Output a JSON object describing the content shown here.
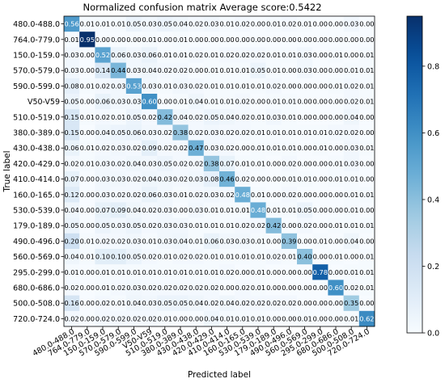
{
  "chart_data": {
    "type": "heatmap",
    "title": "Normalized confusion matrix    Average score:0.5422",
    "xlabel": "Predicted label",
    "ylabel": "True label",
    "labels": [
      "480.0-488.0",
      "764.0-779.0",
      "150.0-159.0",
      "570.0-579.0",
      "590.0-599.0",
      "V50-V59",
      "510.0-519.0",
      "380.0-389.0",
      "430.0-438.0",
      "420.0-429.0",
      "410.0-414.0",
      "160.0-165.0",
      "530.0-539.0",
      "179.0-189.0",
      "490.0-496.0",
      "560.0-569.0",
      "295.0-299.0",
      "680.0-686.0",
      "500.0-508.0",
      "720.0-724.0"
    ],
    "matrix": [
      [
        0.56,
        0.01,
        0.01,
        0.01,
        0.05,
        0.03,
        0.05,
        0.04,
        0.02,
        0.03,
        0.01,
        0.02,
        0.0,
        0.01,
        0.02,
        0.01,
        0.0,
        0.0,
        0.03,
        0.0
      ],
      [
        0.01,
        0.95,
        0.0,
        0.0,
        0.0,
        0.01,
        0.0,
        0.01,
        0.0,
        0.0,
        0.0,
        0.0,
        0.0,
        0.0,
        0.0,
        0.0,
        0.0,
        0.0,
        0.0,
        0.0
      ],
      [
        0.03,
        0.0,
        0.52,
        0.06,
        0.03,
        0.06,
        0.01,
        0.01,
        0.02,
        0.01,
        0.02,
        0.02,
        0.02,
        0.01,
        0.01,
        0.03,
        0.0,
        0.01,
        0.0,
        0.01
      ],
      [
        0.03,
        0.0,
        0.14,
        0.44,
        0.03,
        0.04,
        0.02,
        0.02,
        0.0,
        0.01,
        0.01,
        0.01,
        0.05,
        0.01,
        0.0,
        0.03,
        0.0,
        0.0,
        0.01,
        0.01
      ],
      [
        0.08,
        0.01,
        0.02,
        0.03,
        0.53,
        0.03,
        0.01,
        0.03,
        0.02,
        0.01,
        0.01,
        0.01,
        0.01,
        0.02,
        0.0,
        0.0,
        0.0,
        0.01,
        0.02,
        0.01
      ],
      [
        0.05,
        0.0,
        0.06,
        0.03,
        0.03,
        0.6,
        0.0,
        0.01,
        0.04,
        0.01,
        0.01,
        0.02,
        0.0,
        0.01,
        0.01,
        0.0,
        0.0,
        0.0,
        0.02,
        0.01
      ],
      [
        0.15,
        0.01,
        0.02,
        0.01,
        0.05,
        0.02,
        0.42,
        0.04,
        0.02,
        0.05,
        0.04,
        0.02,
        0.01,
        0.03,
        0.01,
        0.0,
        0.0,
        0.0,
        0.04,
        0.0
      ],
      [
        0.15,
        0.0,
        0.04,
        0.05,
        0.06,
        0.03,
        0.02,
        0.38,
        0.02,
        0.03,
        0.02,
        0.02,
        0.01,
        0.01,
        0.01,
        0.01,
        0.01,
        0.02,
        0.02,
        0.0
      ],
      [
        0.06,
        0.01,
        0.02,
        0.03,
        0.02,
        0.09,
        0.02,
        0.02,
        0.47,
        0.03,
        0.02,
        0.0,
        0.01,
        0.01,
        0.01,
        0.0,
        0.01,
        0.0,
        0.03,
        0.01
      ],
      [
        0.02,
        0.01,
        0.03,
        0.02,
        0.04,
        0.03,
        0.05,
        0.02,
        0.02,
        0.38,
        0.07,
        0.01,
        0.01,
        0.0,
        0.02,
        0.0,
        0.0,
        0.01,
        0.03,
        0.0
      ],
      [
        0.07,
        0.0,
        0.03,
        0.03,
        0.02,
        0.04,
        0.03,
        0.02,
        0.03,
        0.08,
        0.46,
        0.02,
        0.0,
        0.0,
        0.01,
        0.01,
        0.0,
        0.01,
        0.01,
        0.0
      ],
      [
        0.12,
        0.0,
        0.03,
        0.02,
        0.02,
        0.06,
        0.03,
        0.01,
        0.02,
        0.03,
        0.02,
        0.48,
        0.01,
        0.0,
        0.02,
        0.0,
        0.0,
        0.0,
        0.01,
        0.01
      ],
      [
        0.04,
        0.0,
        0.07,
        0.09,
        0.04,
        0.02,
        0.03,
        0.0,
        0.03,
        0.01,
        0.01,
        0.01,
        0.48,
        0.01,
        0.01,
        0.05,
        0.0,
        0.0,
        0.01,
        0.0
      ],
      [
        0.05,
        0.0,
        0.05,
        0.03,
        0.05,
        0.02,
        0.03,
        0.03,
        0.01,
        0.01,
        0.01,
        0.02,
        0.02,
        0.42,
        0.0,
        0.02,
        0.0,
        0.01,
        0.01,
        0.01
      ],
      [
        0.2,
        0.01,
        0.02,
        0.02,
        0.03,
        0.01,
        0.03,
        0.04,
        0.01,
        0.06,
        0.03,
        0.03,
        0.01,
        0.0,
        0.39,
        0.0,
        0.01,
        0.0,
        0.04,
        0.0
      ],
      [
        0.04,
        0.01,
        0.1,
        0.1,
        0.05,
        0.02,
        0.01,
        0.02,
        0.02,
        0.01,
        0.01,
        0.01,
        0.01,
        0.02,
        0.01,
        0.4,
        0.0,
        0.01,
        0.0,
        0.01
      ],
      [
        0.01,
        0.0,
        0.01,
        0.01,
        0.01,
        0.01,
        0.01,
        0.01,
        0.01,
        0.01,
        0.02,
        0.0,
        0.01,
        0.0,
        0.0,
        0.0,
        0.78,
        0.0,
        0.01,
        0.01
      ],
      [
        0.02,
        0.0,
        0.01,
        0.02,
        0.03,
        0.02,
        0.02,
        0.02,
        0.02,
        0.02,
        0.0,
        0.02,
        0.01,
        0.0,
        0.0,
        0.0,
        0.0,
        0.6,
        0.02,
        0.01
      ],
      [
        0.16,
        0.0,
        0.02,
        0.01,
        0.04,
        0.03,
        0.05,
        0.05,
        0.04,
        0.02,
        0.04,
        0.02,
        0.02,
        0.02,
        0.02,
        0.0,
        0.0,
        0.0,
        0.35,
        0.0
      ],
      [
        0.02,
        0.0,
        0.02,
        0.02,
        0.02,
        0.02,
        0.01,
        0.0,
        0.0,
        0.04,
        0.01,
        0.01,
        0.01,
        0.0,
        0.0,
        0.01,
        0.0,
        0.0,
        0.01,
        0.62
      ]
    ],
    "colormap": "Blues",
    "colorbar": {
      "vmin": 0.0,
      "vmax": 0.95,
      "ticks": [
        0.0,
        0.2,
        0.4,
        0.6,
        0.8
      ]
    }
  }
}
